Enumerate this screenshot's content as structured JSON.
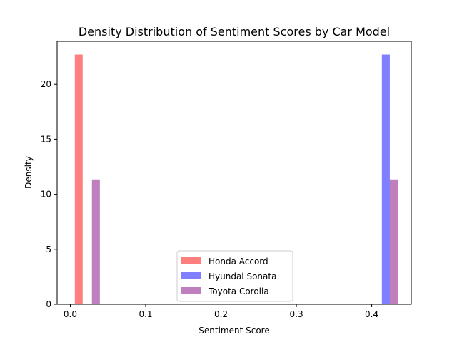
{
  "chart_data": {
    "type": "bar",
    "title": "Density Distribution of Sentiment Scores by Car Model",
    "xlabel": "Sentiment Score",
    "ylabel": "Density",
    "xlim": [
      -0.0175,
      0.4525
    ],
    "ylim": [
      0,
      23.9
    ],
    "x_ticks": [
      0.0,
      0.1,
      0.2,
      0.3,
      0.4
    ],
    "x_tick_labels": [
      "0.0",
      "0.1",
      "0.2",
      "0.3",
      "0.4"
    ],
    "y_ticks": [
      0,
      5,
      10,
      15,
      20
    ],
    "y_tick_labels": [
      "0",
      "5",
      "10",
      "15",
      "20"
    ],
    "grid": false,
    "legend_position": "lower-center",
    "series": [
      {
        "name": "Honda Accord",
        "color": "#ff0000",
        "opacity": 0.5,
        "bars": [
          {
            "x0": 0.006,
            "x1": 0.0164,
            "value": 22.7
          }
        ]
      },
      {
        "name": "Hyundai Sonata",
        "color": "#0000ff",
        "opacity": 0.5,
        "bars": [
          {
            "x0": 0.4135,
            "x1": 0.424,
            "value": 22.7
          }
        ]
      },
      {
        "name": "Toyota Corolla",
        "color": "#800080",
        "opacity": 0.5,
        "bars": [
          {
            "x0": 0.0287,
            "x1": 0.0392,
            "value": 11.35
          },
          {
            "x0": 0.424,
            "x1": 0.4345,
            "value": 11.35
          }
        ]
      }
    ]
  }
}
